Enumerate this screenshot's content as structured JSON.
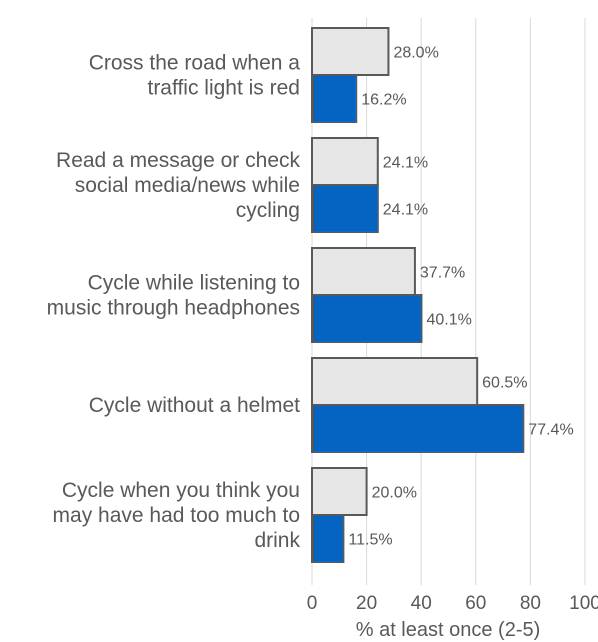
{
  "chart_data": {
    "type": "bar",
    "orientation": "horizontal",
    "categories": [
      [
        "Cross the road when a",
        "traffic light is red"
      ],
      [
        "Read a message or check",
        "social media/news while",
        "cycling"
      ],
      [
        "Cycle while listening to",
        "music through headphones"
      ],
      [
        "Cycle without a helmet"
      ],
      [
        "Cycle when you think you",
        "may have had too much to",
        "drink"
      ]
    ],
    "series": [
      {
        "values": [
          28.0,
          24.1,
          37.7,
          60.5,
          20.0
        ],
        "labels": [
          "28.0%",
          "24.1%",
          "37.7%",
          "60.5%",
          "20.0%"
        ],
        "color": "#e6e6e6"
      },
      {
        "values": [
          16.2,
          24.1,
          40.1,
          77.4,
          11.5
        ],
        "labels": [
          "16.2%",
          "24.1%",
          "40.1%",
          "77.4%",
          "11.5%"
        ],
        "color": "#0563c1"
      }
    ],
    "xlim": [
      0,
      100
    ],
    "xticks": [
      "0",
      "20",
      "40",
      "60",
      "80",
      "100"
    ],
    "xlabel": "% at least once (2-5)",
    "ylabel": "",
    "grid": true,
    "bar_outline_color": "#595959"
  }
}
